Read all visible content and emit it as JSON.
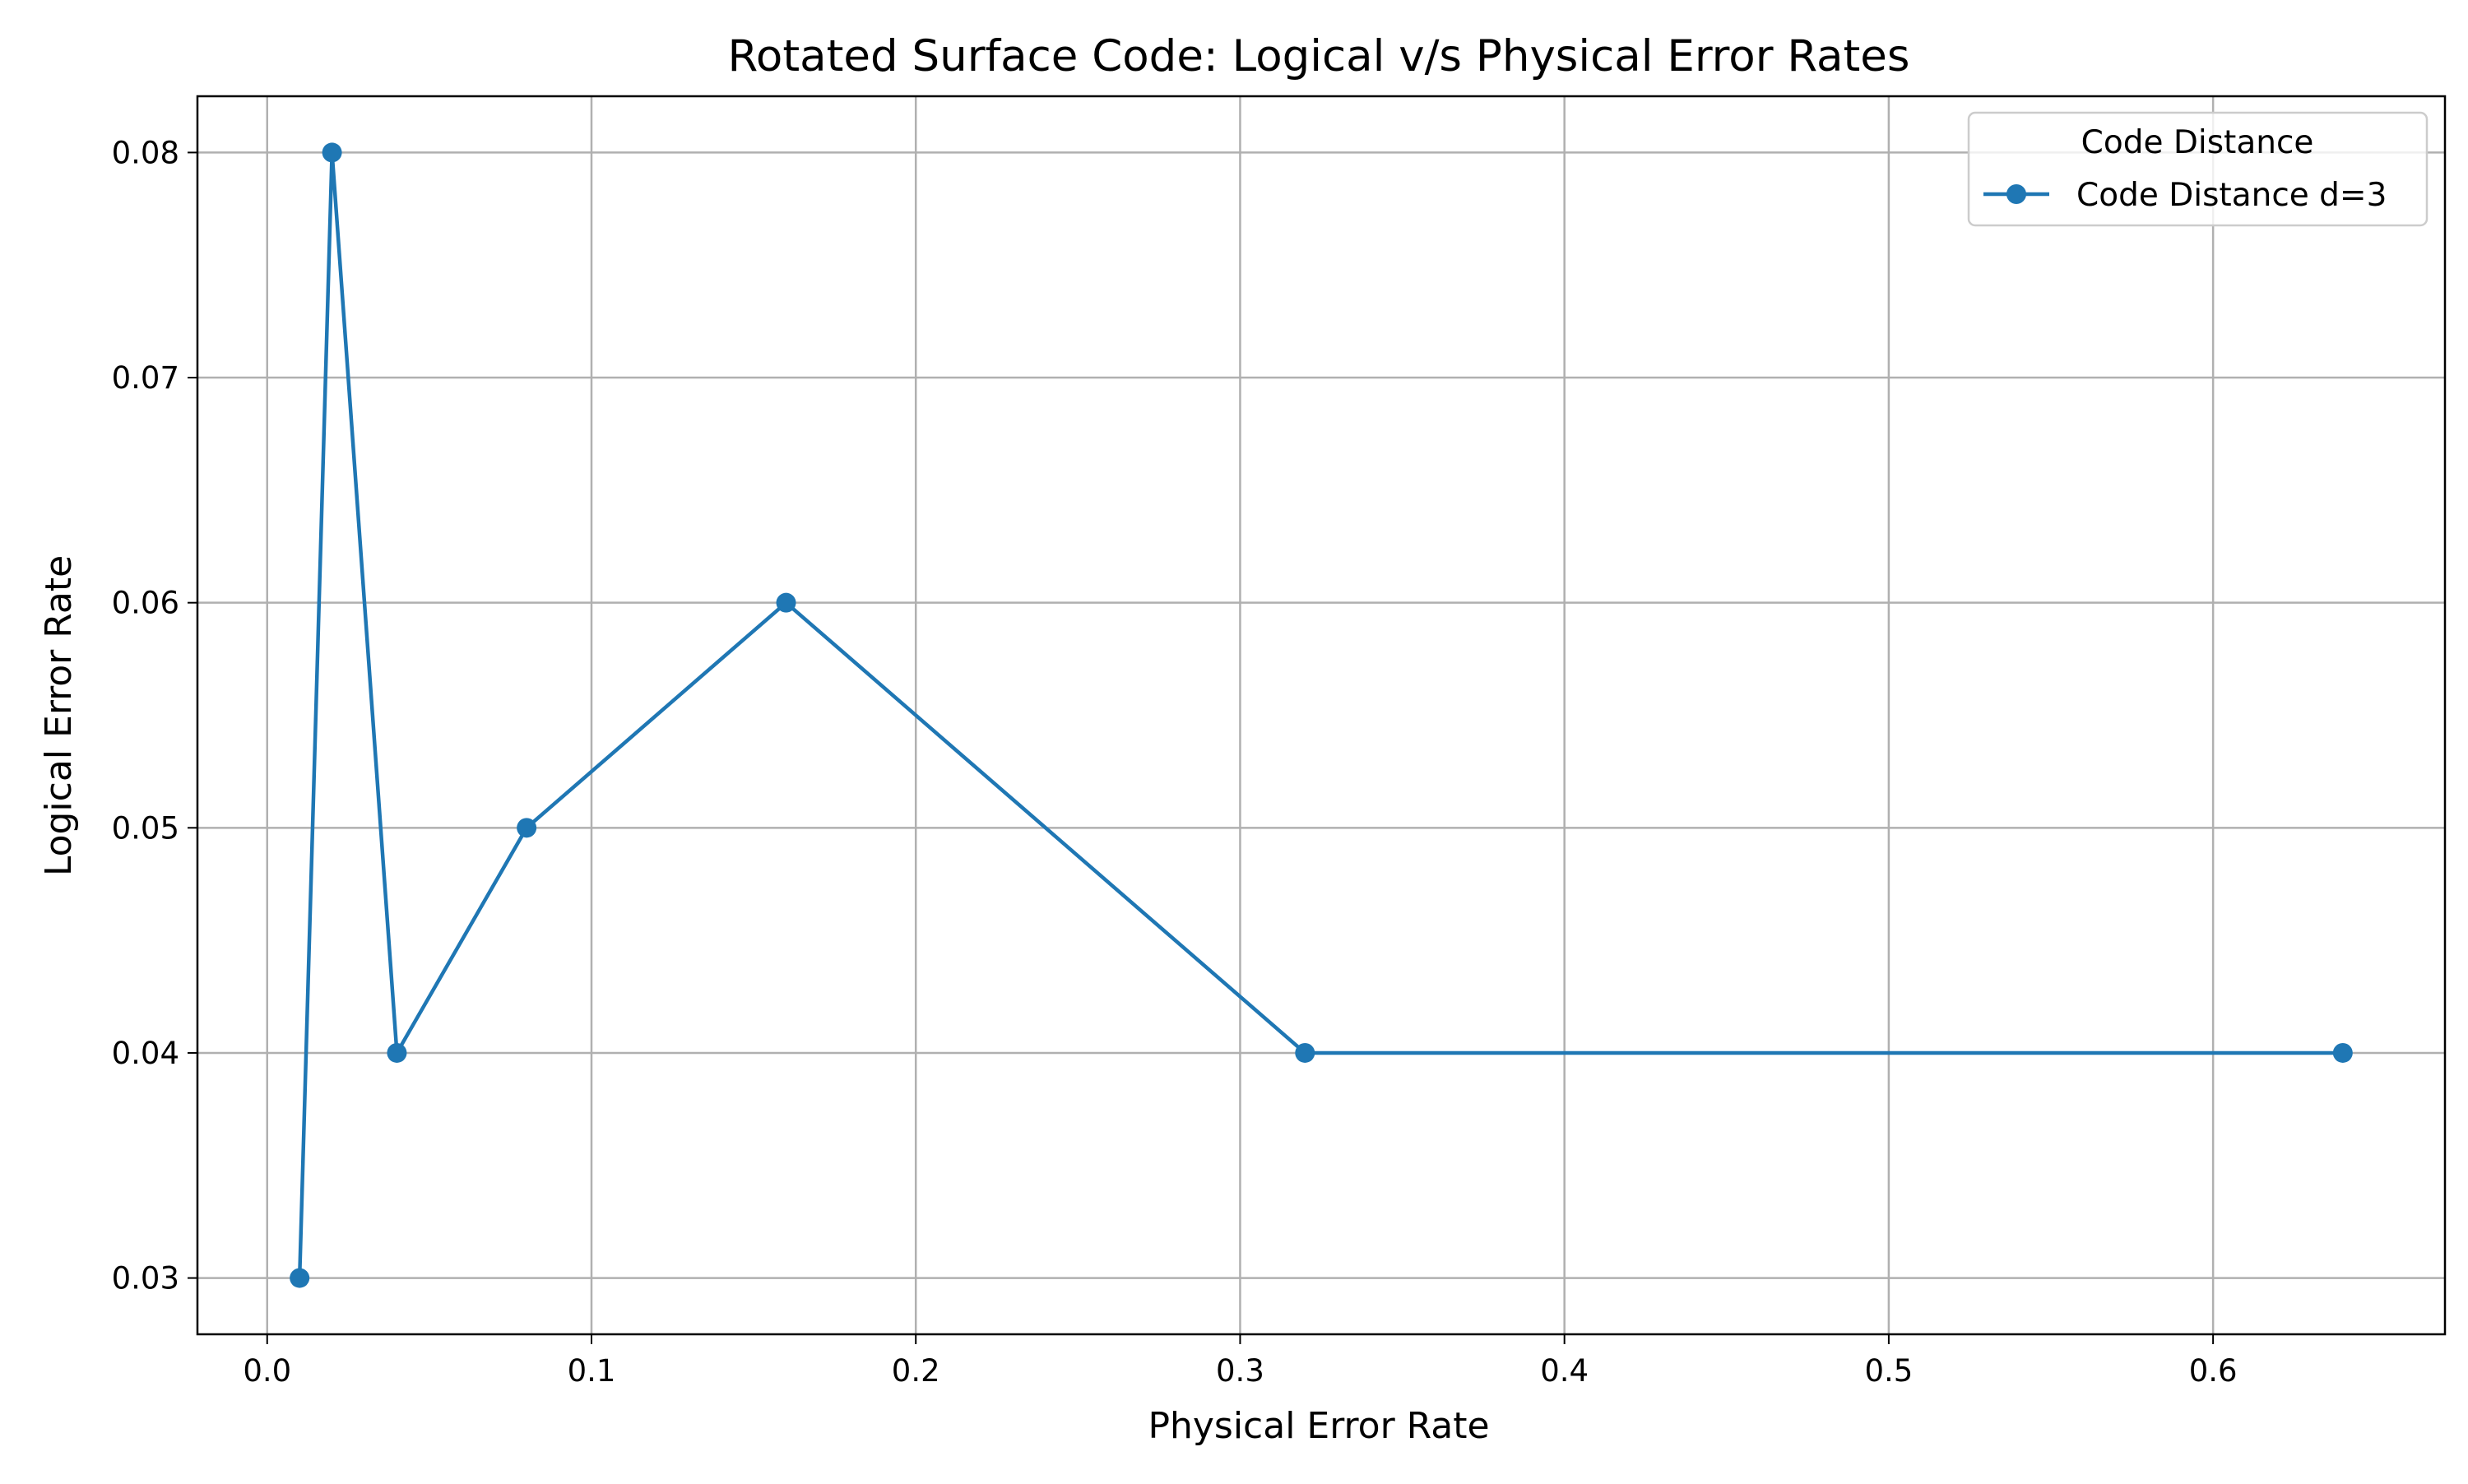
{
  "chart_data": {
    "type": "line",
    "title": "Rotated Surface Code: Logical v/s Physical Error Rates",
    "xlabel": "Physical Error Rate",
    "ylabel": "Logical Error Rate",
    "xlim": [
      -0.0215,
      0.6715
    ],
    "ylim": [
      0.0275,
      0.0825
    ],
    "x_ticks": [
      0.0,
      0.1,
      0.2,
      0.3,
      0.4,
      0.5,
      0.6
    ],
    "x_tick_labels": [
      "0.0",
      "0.1",
      "0.2",
      "0.3",
      "0.4",
      "0.5",
      "0.6"
    ],
    "y_ticks": [
      0.03,
      0.04,
      0.05,
      0.06,
      0.07,
      0.08
    ],
    "y_tick_labels": [
      "0.03",
      "0.04",
      "0.05",
      "0.06",
      "0.07",
      "0.08"
    ],
    "grid": true,
    "legend": {
      "title": "Code Distance",
      "position": "top-right"
    },
    "series": [
      {
        "name": "Code Distance d=3",
        "color": "#1f77b4",
        "marker": "circle",
        "x": [
          0.01,
          0.02,
          0.04,
          0.08,
          0.16,
          0.32,
          0.64
        ],
        "y": [
          0.03,
          0.08,
          0.04,
          0.05,
          0.06,
          0.04,
          0.04
        ]
      }
    ]
  }
}
